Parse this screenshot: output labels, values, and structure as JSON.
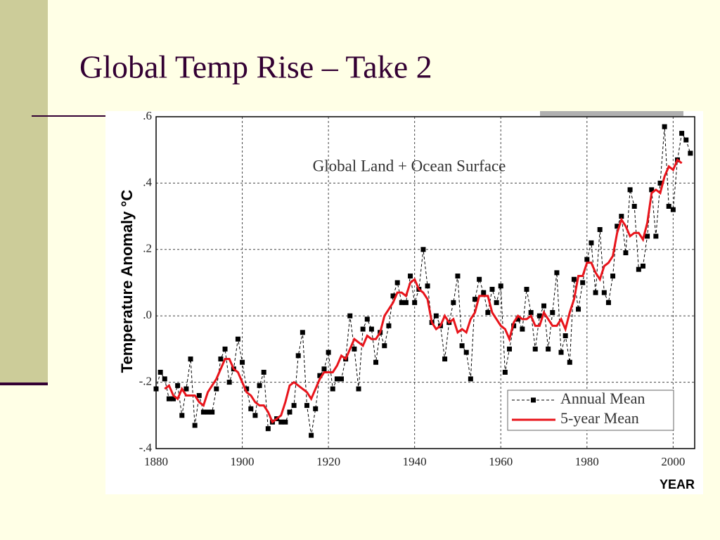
{
  "title": "Global Temp Rise – Take 2",
  "chart_data": {
    "type": "line",
    "title": "Global Land + Ocean Surface",
    "y_label": "Temperature Anomaly °C",
    "x_label": "YEAR",
    "x": [
      1880,
      1881,
      1882,
      1883,
      1884,
      1885,
      1886,
      1887,
      1888,
      1889,
      1890,
      1891,
      1892,
      1893,
      1894,
      1895,
      1896,
      1897,
      1898,
      1899,
      1900,
      1901,
      1902,
      1903,
      1904,
      1905,
      1906,
      1907,
      1908,
      1909,
      1910,
      1911,
      1912,
      1913,
      1914,
      1915,
      1916,
      1917,
      1918,
      1919,
      1920,
      1921,
      1922,
      1923,
      1924,
      1925,
      1926,
      1927,
      1928,
      1929,
      1930,
      1931,
      1932,
      1933,
      1934,
      1935,
      1936,
      1937,
      1938,
      1939,
      1940,
      1941,
      1942,
      1943,
      1944,
      1945,
      1946,
      1947,
      1948,
      1949,
      1950,
      1951,
      1952,
      1953,
      1954,
      1955,
      1956,
      1957,
      1958,
      1959,
      1960,
      1961,
      1962,
      1963,
      1964,
      1965,
      1966,
      1967,
      1968,
      1969,
      1970,
      1971,
      1972,
      1973,
      1974,
      1975,
      1976,
      1977,
      1978,
      1979,
      1980,
      1981,
      1982,
      1983,
      1984,
      1985,
      1986,
      1987,
      1988,
      1989,
      1990,
      1991,
      1992,
      1993,
      1994,
      1995,
      1996,
      1997,
      1998,
      1999,
      2000,
      2001,
      2002,
      2003,
      2004
    ],
    "series": [
      {
        "name": "Annual Mean",
        "color": "#000000",
        "line_style": "dashed",
        "marker": "square",
        "values": [
          -0.22,
          -0.17,
          -0.19,
          -0.25,
          -0.25,
          -0.21,
          -0.3,
          -0.22,
          -0.13,
          -0.33,
          -0.24,
          -0.29,
          -0.29,
          -0.29,
          -0.22,
          -0.13,
          -0.1,
          -0.2,
          -0.16,
          -0.07,
          -0.14,
          -0.22,
          -0.28,
          -0.3,
          -0.21,
          -0.17,
          -0.34,
          -0.32,
          -0.31,
          -0.32,
          -0.32,
          -0.29,
          -0.27,
          -0.12,
          -0.05,
          -0.27,
          -0.36,
          -0.28,
          -0.18,
          -0.16,
          -0.11,
          -0.22,
          -0.19,
          -0.19,
          -0.13,
          0.0,
          -0.1,
          -0.22,
          -0.04,
          -0.01,
          -0.04,
          -0.14,
          -0.05,
          -0.09,
          -0.03,
          0.06,
          0.1,
          0.04,
          0.04,
          0.12,
          0.04,
          0.08,
          0.2,
          0.09,
          -0.02,
          0.0,
          -0.03,
          -0.13,
          -0.02,
          0.04,
          0.12,
          -0.09,
          -0.11,
          -0.19,
          0.05,
          0.11,
          0.07,
          0.01,
          0.08,
          0.04,
          0.09,
          -0.17,
          -0.1,
          -0.03,
          -0.01,
          -0.04,
          0.08,
          0.01,
          -0.1,
          0.0,
          0.03,
          -0.1,
          0.01,
          0.13,
          -0.11,
          -0.06,
          -0.14,
          0.11,
          0.02,
          0.1,
          0.17,
          0.22,
          0.07,
          0.26,
          0.07,
          0.04,
          0.12,
          0.27,
          0.3,
          0.19,
          0.38,
          0.33,
          0.14,
          0.15,
          0.24,
          0.38,
          0.24,
          0.4,
          0.57,
          0.33,
          0.32,
          0.47,
          0.55,
          0.53,
          0.49
        ]
      },
      {
        "name": "5-year Mean",
        "color": "#e8141b",
        "line_style": "solid",
        "marker": "none",
        "values": [
          null,
          null,
          -0.22,
          -0.21,
          -0.24,
          -0.25,
          -0.22,
          -0.24,
          -0.24,
          -0.24,
          -0.26,
          -0.27,
          -0.23,
          -0.21,
          -0.19,
          -0.16,
          -0.13,
          -0.13,
          -0.16,
          -0.17,
          -0.2,
          -0.23,
          -0.24,
          -0.26,
          -0.27,
          -0.27,
          -0.29,
          -0.32,
          -0.31,
          -0.3,
          -0.26,
          -0.21,
          -0.2,
          -0.21,
          -0.22,
          -0.23,
          -0.25,
          -0.22,
          -0.19,
          -0.17,
          -0.17,
          -0.17,
          -0.15,
          -0.12,
          -0.13,
          -0.1,
          -0.07,
          -0.08,
          -0.09,
          -0.06,
          -0.07,
          -0.07,
          -0.05,
          0.0,
          0.02,
          0.04,
          0.07,
          0.07,
          0.06,
          0.1,
          0.11,
          0.08,
          0.07,
          0.05,
          -0.02,
          -0.04,
          -0.03,
          0.0,
          -0.02,
          -0.01,
          -0.05,
          -0.04,
          -0.05,
          -0.01,
          0.01,
          0.06,
          0.06,
          0.06,
          0.01,
          -0.01,
          -0.03,
          -0.04,
          -0.07,
          -0.02,
          0.0,
          -0.01,
          -0.01,
          0.0,
          -0.03,
          -0.03,
          0.01,
          -0.01,
          -0.03,
          -0.03,
          -0.01,
          -0.04,
          0.01,
          0.05,
          0.12,
          0.12,
          0.16,
          0.16,
          0.13,
          0.11,
          0.15,
          0.16,
          0.18,
          0.25,
          0.29,
          0.27,
          0.24,
          0.25,
          0.25,
          0.23,
          0.28,
          0.37,
          0.38,
          0.37,
          0.42,
          0.45,
          0.44,
          0.47,
          0.46,
          null,
          null
        ]
      }
    ],
    "xlim": [
      1880,
      2005
    ],
    "ylim": [
      -0.4,
      0.6
    ],
    "xticks": [
      1880,
      1900,
      1920,
      1940,
      1960,
      1980,
      2000
    ],
    "yticks": [
      {
        "value": -0.4,
        "label": "-.4"
      },
      {
        "value": -0.2,
        "label": "-.2"
      },
      {
        "value": 0,
        "label": ".0"
      },
      {
        "value": 0.2,
        "label": ".2"
      },
      {
        "value": 0.4,
        "label": ".4"
      },
      {
        "value": 0.6,
        "label": ".6"
      }
    ],
    "grid": true,
    "legend": "lower right"
  }
}
